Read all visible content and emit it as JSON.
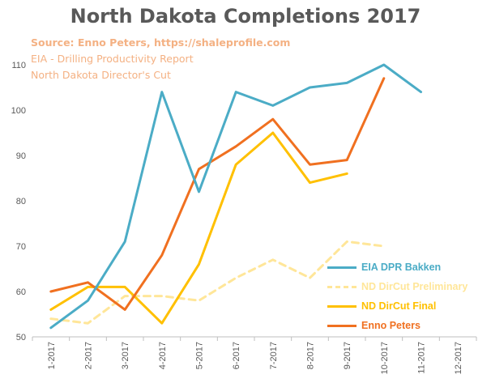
{
  "chart_data": {
    "type": "line",
    "title": "North Dakota Completions 2017",
    "xlabel": "",
    "ylabel": "",
    "categories": [
      "1-2017",
      "2-2017",
      "3-2017",
      "4-2017",
      "5-2017",
      "6-2017",
      "7-2017",
      "8-2017",
      "9-2017",
      "10-2017",
      "11-2017",
      "12-2017"
    ],
    "ylim": [
      50,
      110
    ],
    "yticks": [
      50,
      60,
      70,
      80,
      90,
      100,
      110
    ],
    "grid": false,
    "legend_placement": "bottom-right",
    "series": [
      {
        "name": "EIA DPR Bakken",
        "color": "#4bacc6",
        "dash": false,
        "values": [
          52,
          58,
          71,
          104,
          82,
          104,
          101,
          105,
          106,
          110,
          104,
          null
        ]
      },
      {
        "name": "ND DirCut Preliminary",
        "color": "#ffe699",
        "dash": true,
        "values": [
          54,
          53,
          59,
          59,
          58,
          63,
          67,
          63,
          71,
          70,
          null,
          null
        ]
      },
      {
        "name": "ND DirCut Final",
        "color": "#ffc000",
        "dash": false,
        "values": [
          56,
          61,
          61,
          53,
          66,
          88,
          95,
          84,
          86,
          null,
          null,
          null
        ]
      },
      {
        "name": "Enno Peters",
        "color": "#f07020",
        "dash": false,
        "values": [
          60,
          62,
          56,
          68,
          87,
          92,
          98,
          88,
          89,
          107,
          null,
          null
        ]
      }
    ]
  },
  "sources": [
    "Source: Enno Peters, https://shaleprofile.com",
    "EIA - Drilling Productivity Report",
    "North Dakota Director's Cut"
  ]
}
